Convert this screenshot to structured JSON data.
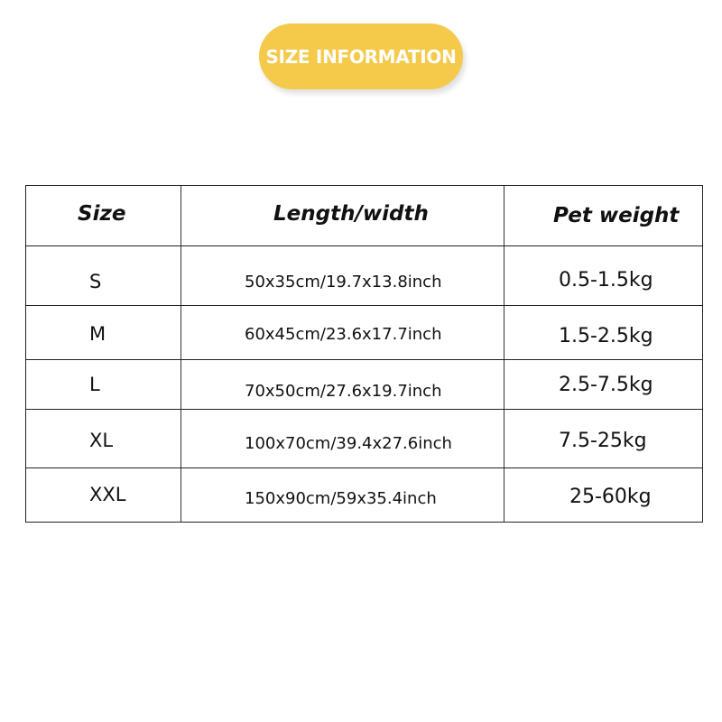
{
  "badge": {
    "label": "SIZE INFORMATION",
    "color": "#f5c94a"
  },
  "table": {
    "headers": [
      "Size",
      "Length/width",
      "Pet weight"
    ],
    "rows": [
      {
        "size": "S",
        "dimensions": "50x35cm/19.7x13.8inch",
        "weight": "0.5-1.5kg"
      },
      {
        "size": "M",
        "dimensions": "60x45cm/23.6x17.7inch",
        "weight": "1.5-2.5kg"
      },
      {
        "size": "L",
        "dimensions": "70x50cm/27.6x19.7inch",
        "weight": "2.5-7.5kg"
      },
      {
        "size": "XL",
        "dimensions": "100x70cm/39.4x27.6inch",
        "weight": "7.5-25kg"
      },
      {
        "size": "XXL",
        "dimensions": "150x90cm/59x35.4inch",
        "weight": "25-60kg"
      }
    ]
  }
}
